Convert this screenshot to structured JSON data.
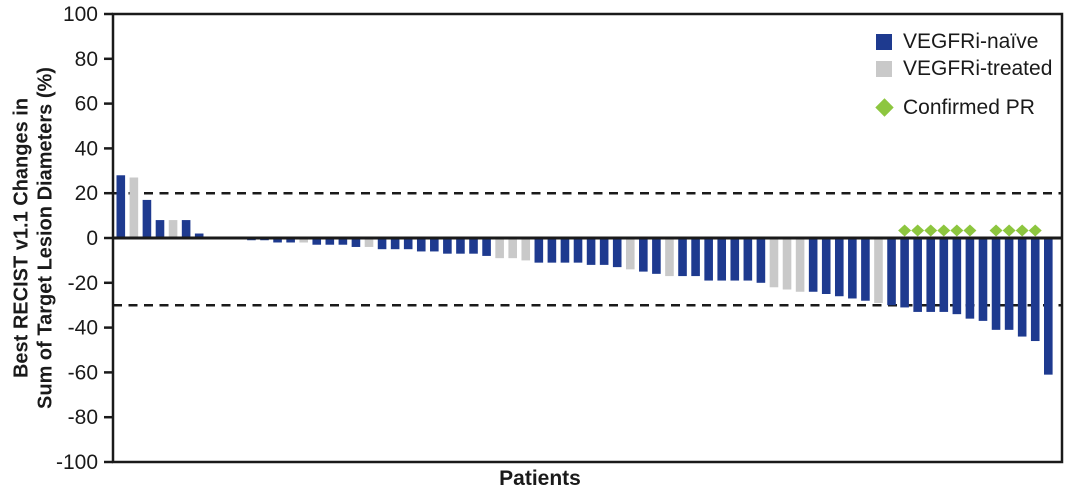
{
  "figure": {
    "xlabel": "Patients",
    "ylabel": "Best RECIST v1.1 Changes in Sum of Target Lesion Diameters (%)",
    "ylabel_lines": [
      "Best RECIST v1.1 Changes in",
      "Sum of Target Lesion Diameters (%)"
    ]
  },
  "legend": {
    "items": [
      {
        "label": "VEGFRi-naïve",
        "swatch": "square",
        "color": "#1e3a8f"
      },
      {
        "label": "VEGFRi-treated",
        "swatch": "square",
        "color": "#c9c9c9"
      },
      {
        "label": "Confirmed PR",
        "swatch": "diamond",
        "color": "#8dc63f"
      }
    ]
  },
  "chart_data": {
    "type": "bar",
    "subtype": "waterfall",
    "title": "",
    "xlabel": "Patients",
    "ylabel": "Best RECIST v1.1 Changes in Sum of Target Lesion Diameters (%)",
    "ylim": [
      -100,
      100
    ],
    "yticks": [
      100,
      80,
      60,
      40,
      20,
      0,
      -20,
      -40,
      -60,
      -80,
      -100
    ],
    "reference_lines": [
      20,
      -30
    ],
    "grid": false,
    "legend_position": "top-right",
    "colors": {
      "naive": "#1e3a8f",
      "treated": "#c9c9c9",
      "confirmed_pr": "#8dc63f",
      "axis": "#1a1a1a"
    },
    "patients": [
      {
        "value": 28,
        "group": "naive",
        "confirmed_pr": false
      },
      {
        "value": 27,
        "group": "treated",
        "confirmed_pr": false
      },
      {
        "value": 17,
        "group": "naive",
        "confirmed_pr": false
      },
      {
        "value": 8,
        "group": "naive",
        "confirmed_pr": false
      },
      {
        "value": 8,
        "group": "treated",
        "confirmed_pr": false
      },
      {
        "value": 8,
        "group": "naive",
        "confirmed_pr": false
      },
      {
        "value": 2,
        "group": "naive",
        "confirmed_pr": false
      },
      {
        "value": 0,
        "group": "naive",
        "confirmed_pr": false
      },
      {
        "value": 0,
        "group": "naive",
        "confirmed_pr": false
      },
      {
        "value": -0.5,
        "group": "naive",
        "confirmed_pr": false
      },
      {
        "value": -1,
        "group": "naive",
        "confirmed_pr": false
      },
      {
        "value": -1,
        "group": "naive",
        "confirmed_pr": false
      },
      {
        "value": -2,
        "group": "naive",
        "confirmed_pr": false
      },
      {
        "value": -2,
        "group": "naive",
        "confirmed_pr": false
      },
      {
        "value": -2,
        "group": "treated",
        "confirmed_pr": false
      },
      {
        "value": -3,
        "group": "naive",
        "confirmed_pr": false
      },
      {
        "value": -3,
        "group": "naive",
        "confirmed_pr": false
      },
      {
        "value": -3,
        "group": "naive",
        "confirmed_pr": false
      },
      {
        "value": -4,
        "group": "naive",
        "confirmed_pr": false
      },
      {
        "value": -4,
        "group": "treated",
        "confirmed_pr": false
      },
      {
        "value": -5,
        "group": "naive",
        "confirmed_pr": false
      },
      {
        "value": -5,
        "group": "naive",
        "confirmed_pr": false
      },
      {
        "value": -5,
        "group": "naive",
        "confirmed_pr": false
      },
      {
        "value": -6,
        "group": "naive",
        "confirmed_pr": false
      },
      {
        "value": -6,
        "group": "naive",
        "confirmed_pr": false
      },
      {
        "value": -7,
        "group": "naive",
        "confirmed_pr": false
      },
      {
        "value": -7,
        "group": "naive",
        "confirmed_pr": false
      },
      {
        "value": -7,
        "group": "naive",
        "confirmed_pr": false
      },
      {
        "value": -8,
        "group": "naive",
        "confirmed_pr": false
      },
      {
        "value": -9,
        "group": "treated",
        "confirmed_pr": false
      },
      {
        "value": -9,
        "group": "treated",
        "confirmed_pr": false
      },
      {
        "value": -10,
        "group": "treated",
        "confirmed_pr": false
      },
      {
        "value": -11,
        "group": "naive",
        "confirmed_pr": false
      },
      {
        "value": -11,
        "group": "naive",
        "confirmed_pr": false
      },
      {
        "value": -11,
        "group": "naive",
        "confirmed_pr": false
      },
      {
        "value": -11,
        "group": "naive",
        "confirmed_pr": false
      },
      {
        "value": -12,
        "group": "naive",
        "confirmed_pr": false
      },
      {
        "value": -12,
        "group": "naive",
        "confirmed_pr": false
      },
      {
        "value": -13,
        "group": "naive",
        "confirmed_pr": false
      },
      {
        "value": -14,
        "group": "treated",
        "confirmed_pr": false
      },
      {
        "value": -15,
        "group": "naive",
        "confirmed_pr": false
      },
      {
        "value": -16,
        "group": "naive",
        "confirmed_pr": false
      },
      {
        "value": -17,
        "group": "treated",
        "confirmed_pr": false
      },
      {
        "value": -17,
        "group": "naive",
        "confirmed_pr": false
      },
      {
        "value": -17,
        "group": "naive",
        "confirmed_pr": false
      },
      {
        "value": -19,
        "group": "naive",
        "confirmed_pr": false
      },
      {
        "value": -19,
        "group": "naive",
        "confirmed_pr": false
      },
      {
        "value": -19,
        "group": "naive",
        "confirmed_pr": false
      },
      {
        "value": -19,
        "group": "naive",
        "confirmed_pr": false
      },
      {
        "value": -20,
        "group": "naive",
        "confirmed_pr": false
      },
      {
        "value": -22,
        "group": "treated",
        "confirmed_pr": false
      },
      {
        "value": -23,
        "group": "treated",
        "confirmed_pr": false
      },
      {
        "value": -24,
        "group": "treated",
        "confirmed_pr": false
      },
      {
        "value": -24,
        "group": "naive",
        "confirmed_pr": false
      },
      {
        "value": -25,
        "group": "naive",
        "confirmed_pr": false
      },
      {
        "value": -26,
        "group": "naive",
        "confirmed_pr": false
      },
      {
        "value": -27,
        "group": "naive",
        "confirmed_pr": false
      },
      {
        "value": -28,
        "group": "naive",
        "confirmed_pr": false
      },
      {
        "value": -29,
        "group": "treated",
        "confirmed_pr": false
      },
      {
        "value": -30,
        "group": "naive",
        "confirmed_pr": false
      },
      {
        "value": -31,
        "group": "naive",
        "confirmed_pr": true
      },
      {
        "value": -33,
        "group": "naive",
        "confirmed_pr": true
      },
      {
        "value": -33,
        "group": "naive",
        "confirmed_pr": true
      },
      {
        "value": -33,
        "group": "naive",
        "confirmed_pr": true
      },
      {
        "value": -34,
        "group": "naive",
        "confirmed_pr": true
      },
      {
        "value": -36,
        "group": "naive",
        "confirmed_pr": true
      },
      {
        "value": -37,
        "group": "naive",
        "confirmed_pr": false
      },
      {
        "value": -41,
        "group": "naive",
        "confirmed_pr": true
      },
      {
        "value": -41,
        "group": "naive",
        "confirmed_pr": true
      },
      {
        "value": -44,
        "group": "naive",
        "confirmed_pr": true
      },
      {
        "value": -46,
        "group": "naive",
        "confirmed_pr": true
      },
      {
        "value": -61,
        "group": "naive",
        "confirmed_pr": false
      }
    ]
  }
}
